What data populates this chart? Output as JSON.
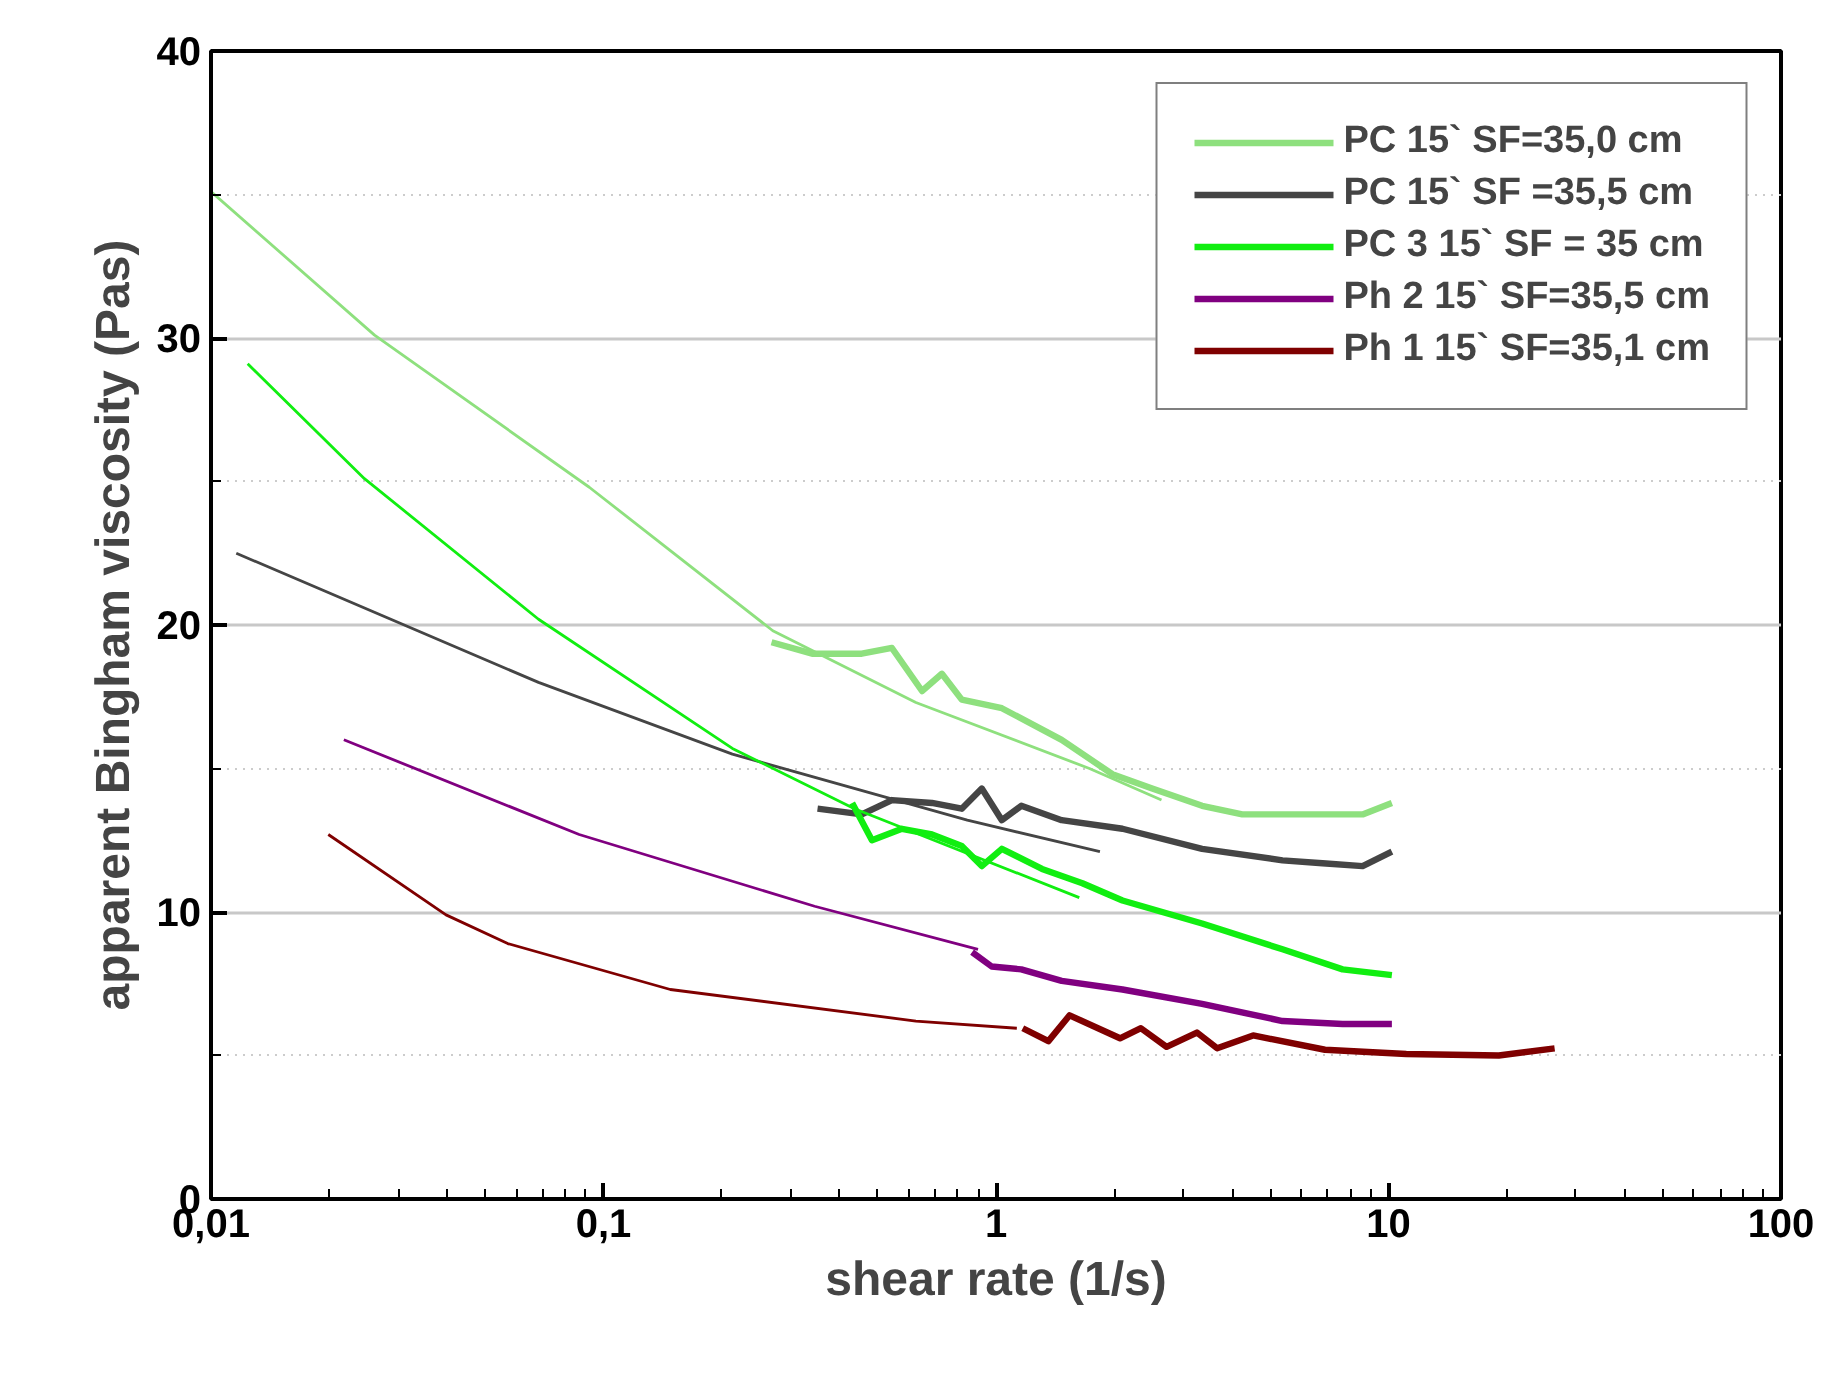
{
  "chart_data": {
    "type": "line",
    "xlabel": "shear rate (1/s)",
    "ylabel": "apparent Bingham viscosity (Pas)",
    "log": "x",
    "xlim": [
      0.01,
      100
    ],
    "xticks": [
      {
        "value": 0.01,
        "label": "0,01"
      },
      {
        "value": 0.1,
        "label": "0,1"
      },
      1,
      10,
      100
    ],
    "ylim": [
      0,
      40
    ],
    "yticks": [
      0,
      10,
      20,
      30,
      40
    ],
    "grid": "y",
    "legend": "top right",
    "series": [
      {
        "name": "PC 15` SF=35,0 cm",
        "color": "#8ee07e",
        "x": [
          0.268,
          0.34,
          0.455,
          0.543,
          0.648,
          0.728,
          0.818,
          1.035,
          1.47,
          1.98,
          2.5,
          3.35,
          4.24,
          6.04,
          8.59,
          10.2
        ],
        "values": [
          19.4,
          19.0,
          19.0,
          19.2,
          17.7,
          18.3,
          17.4,
          17.1,
          16.0,
          14.8,
          14.3,
          13.7,
          13.4,
          13.4,
          13.4,
          13.8
        ]
      },
      {
        "color": "#8ee07e",
        "x": [
          0.01,
          0.0261,
          0.092,
          0.27,
          0.625,
          1.73,
          2.64
        ],
        "values": [
          35.1,
          30.1,
          24.8,
          19.8,
          17.3,
          15.0,
          13.9
        ]
      },
      {
        "name": "PC 15` SF =35,5 cm",
        "color": "#454545",
        "x": [
          0.351,
          0.455,
          0.543,
          0.687,
          0.818,
          0.92,
          1.035,
          1.16,
          1.47,
          2.1,
          3.35,
          5.37,
          6.79,
          8.59,
          10.2
        ],
        "values": [
          13.6,
          13.4,
          13.9,
          13.8,
          13.6,
          14.3,
          13.2,
          13.7,
          13.2,
          12.9,
          12.2,
          11.8,
          11.7,
          11.6,
          12.1
        ]
      },
      {
        "color": "#454545",
        "x": [
          0.0116,
          0.0683,
          0.213,
          0.845,
          1.84
        ],
        "values": [
          22.5,
          18.0,
          15.5,
          13.2,
          12.1
        ]
      },
      {
        "name": "PC 3 15` SF = 35 cm",
        "color": "#11ee11",
        "x": [
          0.43,
          0.483,
          0.576,
          0.687,
          0.818,
          0.92,
          1.035,
          1.31,
          1.66,
          2.1,
          3.35,
          5.37,
          7.64,
          10.2
        ],
        "values": [
          13.8,
          12.5,
          12.9,
          12.7,
          12.3,
          11.6,
          12.2,
          11.5,
          11.0,
          10.4,
          9.6,
          8.7,
          8.0,
          7.8
        ]
      },
      {
        "color": "#11ee11",
        "x": [
          0.0124,
          0.0246,
          0.0683,
          0.213,
          0.436,
          1.63
        ],
        "values": [
          29.1,
          25.1,
          20.2,
          15.7,
          13.6,
          10.5
        ]
      },
      {
        "name": "Ph 2 15` SF=35,5 cm",
        "color": "#800080",
        "x": [
          0.869,
          0.975,
          1.16,
          1.47,
          2.1,
          3.35,
          5.37,
          7.64,
          10.2
        ],
        "values": [
          8.6,
          8.1,
          8.0,
          7.6,
          7.3,
          6.8,
          6.2,
          6.1,
          6.1
        ]
      },
      {
        "color": "#800080",
        "x": [
          0.0218,
          0.0867,
          0.345,
          0.9
        ],
        "values": [
          16.0,
          12.7,
          10.2,
          8.7
        ]
      },
      {
        "name": "Ph 1 15` SF=35,1 cm",
        "color": "#7f0000",
        "x": [
          1.17,
          1.36,
          1.54,
          2.07,
          2.34,
          2.72,
          3.25,
          3.66,
          4.52,
          6.89,
          11.1,
          19.1,
          26.5
        ],
        "values": [
          5.95,
          5.5,
          6.4,
          5.6,
          5.95,
          5.3,
          5.8,
          5.25,
          5.7,
          5.2,
          5.05,
          5.0,
          5.25
        ]
      },
      {
        "color": "#7f0000",
        "x": [
          0.0199,
          0.0397,
          0.057,
          0.148,
          0.625,
          1.13
        ],
        "values": [
          12.7,
          9.9,
          8.9,
          7.3,
          6.2,
          5.95
        ]
      }
    ]
  }
}
